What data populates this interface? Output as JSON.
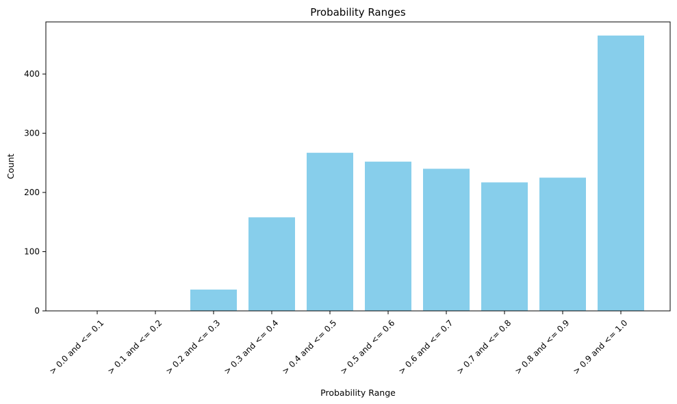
{
  "chart_data": {
    "type": "bar",
    "title": "Probability Ranges",
    "xlabel": "Probability Range",
    "ylabel": "Count",
    "categories": [
      "> 0.0 and <= 0.1",
      "> 0.1 and <= 0.2",
      "> 0.2 and <= 0.3",
      "> 0.3 and <= 0.4",
      "> 0.4 and <= 0.5",
      "> 0.5 and <= 0.6",
      "> 0.6 and <= 0.7",
      "> 0.7 and <= 0.8",
      "> 0.8 and <= 0.9",
      "> 0.9 and <= 1.0"
    ],
    "values": [
      0,
      0,
      36,
      158,
      267,
      252,
      240,
      217,
      225,
      465
    ],
    "ylim": [
      0,
      488
    ],
    "yticks": [
      0,
      100,
      200,
      300,
      400
    ],
    "bar_color": "#87ceeb",
    "grid": false
  }
}
